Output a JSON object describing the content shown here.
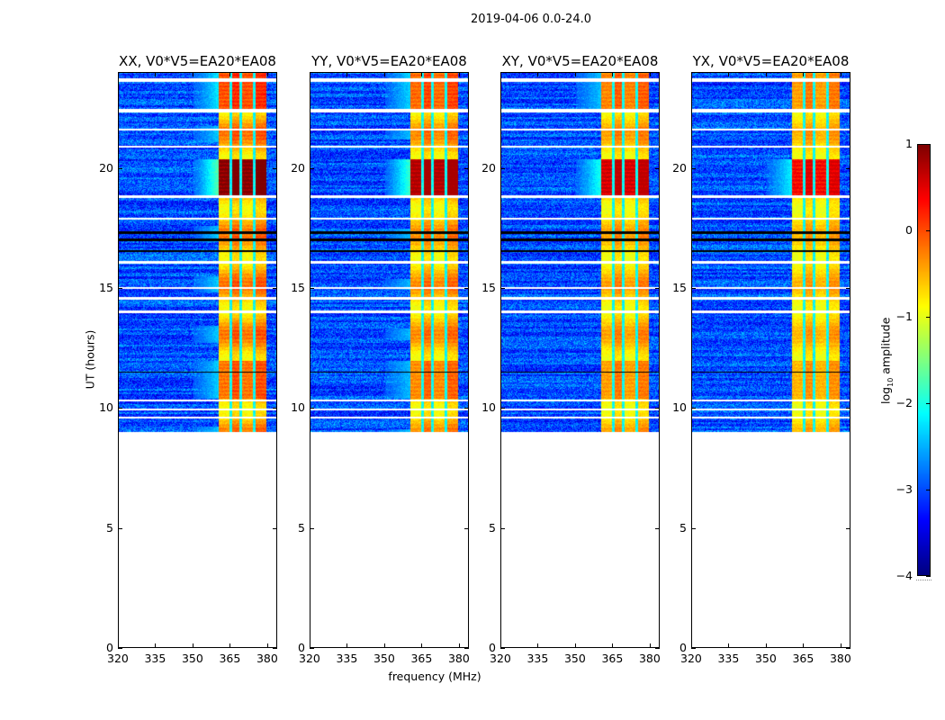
{
  "suptitle": "2019-04-06 0.0-24.0",
  "colors": {
    "gap": "#ffffff",
    "flag_line": "#000000"
  },
  "chart_data": [
    {
      "type": "heatmap",
      "title": "XX, V0*V5=EA20*EA08",
      "xlabel": "",
      "ylabel": "UT (hours)",
      "xlim": [
        320,
        384
      ],
      "ylim": [
        0,
        24
      ],
      "xticks": [
        "320",
        "335",
        "350",
        "365",
        "380"
      ],
      "yticks": [
        "0",
        "5",
        "10",
        "15",
        "20"
      ],
      "data_time_range": [
        9.0,
        24.0
      ],
      "bright_band_mhz": [
        360.3,
        379.8
      ],
      "peak_log_amp": 1.0,
      "background_log_amp": -3.0
    },
    {
      "type": "heatmap",
      "title": "YY, V0*V5=EA20*EA08",
      "xlabel": "frequency (MHz)",
      "ylabel": "",
      "xlim": [
        320,
        384
      ],
      "ylim": [
        0,
        24
      ],
      "xticks": [
        "320",
        "335",
        "350",
        "365",
        "380"
      ],
      "yticks": [
        "0",
        "5",
        "10",
        "15",
        "20"
      ],
      "data_time_range": [
        9.0,
        24.0
      ],
      "bright_band_mhz": [
        360.3,
        379.8
      ],
      "peak_log_amp": 0.8,
      "background_log_amp": -3.0
    },
    {
      "type": "heatmap",
      "title": "XY, V0*V5=EA20*EA08",
      "xlabel": "",
      "ylabel": "",
      "xlim": [
        320,
        384
      ],
      "ylim": [
        0,
        24
      ],
      "xticks": [
        "320",
        "335",
        "350",
        "365",
        "380"
      ],
      "yticks": [
        "0",
        "5",
        "10",
        "15",
        "20"
      ],
      "data_time_range": [
        9.0,
        24.0
      ],
      "bright_band_mhz": [
        360.3,
        379.8
      ],
      "peak_log_amp": 0.7,
      "background_log_amp": -3.0
    },
    {
      "type": "heatmap",
      "title": "YX, V0*V5=EA20*EA08",
      "xlabel": "",
      "ylabel": "",
      "xlim": [
        320,
        384
      ],
      "ylim": [
        0,
        24
      ],
      "xticks": [
        "320",
        "335",
        "350",
        "365",
        "380"
      ],
      "yticks": [
        "0",
        "5",
        "10",
        "15",
        "20"
      ],
      "data_time_range": [
        9.0,
        24.0
      ],
      "bright_band_mhz": [
        360.3,
        379.8
      ],
      "peak_log_amp": 0.6,
      "background_log_amp": -3.0
    }
  ],
  "colorbar": {
    "label": "log10 amplitude",
    "label_base": "log",
    "label_sub": "10",
    "label_rest": " amplitude",
    "range": [
      -4,
      1
    ],
    "ticks": [
      "1",
      "0",
      "−1",
      "−2",
      "−3",
      "−4"
    ],
    "colormap": "jet"
  },
  "gaps_hours": [
    [
      23.65,
      23.78
    ],
    [
      22.38,
      22.5
    ],
    [
      21.62,
      21.7
    ],
    [
      20.88,
      20.98
    ],
    [
      18.78,
      18.9
    ],
    [
      17.9,
      17.98
    ],
    [
      16.05,
      16.15
    ],
    [
      14.98,
      15.06
    ],
    [
      14.55,
      14.65
    ],
    [
      13.98,
      14.08
    ],
    [
      10.3,
      10.38
    ],
    [
      9.92,
      9.98
    ],
    [
      9.58,
      9.64
    ]
  ],
  "flag_lines_hours": [
    [
      17.0,
      17.1
    ],
    [
      17.3,
      17.38
    ],
    [
      11.48,
      11.54
    ],
    [
      16.55,
      16.6
    ]
  ]
}
